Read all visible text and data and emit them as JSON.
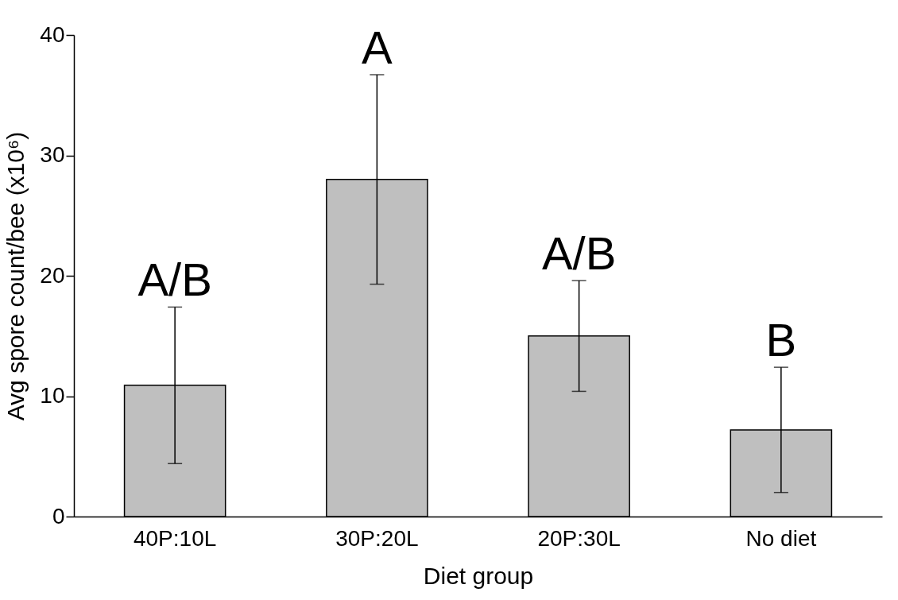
{
  "chart_data": {
    "type": "bar",
    "xlabel": "Diet group",
    "ylabel": "Avg spore count/bee (x10⁶)",
    "categories": [
      "40P:10L",
      "30P:20L",
      "20P:30L",
      "No diet"
    ],
    "values": [
      10.9,
      28.0,
      15.0,
      7.2
    ],
    "errors": [
      6.5,
      8.7,
      4.6,
      5.2
    ],
    "color": "#bfbfbf",
    "ylim": [
      0,
      40
    ],
    "yticks": [
      0,
      10,
      20,
      30,
      40
    ],
    "grid": false,
    "annotations": [
      "A/B",
      "A",
      "A/B",
      "B"
    ]
  }
}
